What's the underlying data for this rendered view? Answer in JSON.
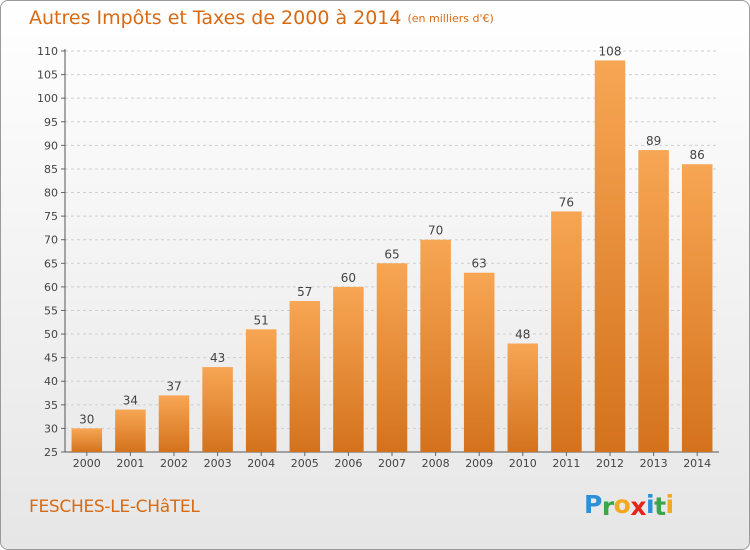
{
  "title": "Autres Impôts et Taxes de 2000 à 2014",
  "unit": "(en milliers d'€)",
  "commune": "FESCHES-LE-CHâTEL",
  "logo": {
    "letters": [
      "P",
      "r",
      "o",
      "x",
      "i",
      "t",
      "i"
    ],
    "colors": [
      "#2d8fd5",
      "#3aa64a",
      "#f2a81f",
      "#e2261c",
      "#2d8fd5",
      "#3aa64a",
      "#f2a81f"
    ]
  },
  "colors": {
    "accent": "#d86a14",
    "bar_top": "#f7a654",
    "bar_bottom": "#d4721c"
  },
  "chart_data": {
    "type": "bar",
    "categories": [
      "2000",
      "2001",
      "2002",
      "2003",
      "2004",
      "2005",
      "2006",
      "2007",
      "2008",
      "2009",
      "2010",
      "2011",
      "2012",
      "2013",
      "2014"
    ],
    "values": [
      30,
      34,
      37,
      43,
      51,
      57,
      60,
      65,
      70,
      63,
      48,
      76,
      108,
      89,
      86
    ],
    "data_labels": [
      "30",
      "34",
      "37",
      "43",
      "51",
      "57",
      "60",
      "65",
      "70",
      "63",
      "48",
      "76",
      "108",
      "89",
      "86"
    ],
    "ylim": [
      25,
      110
    ],
    "yticks": [
      "25",
      "30",
      "35",
      "40",
      "45",
      "50",
      "55",
      "60",
      "65",
      "70",
      "75",
      "80",
      "85",
      "90",
      "95",
      "100",
      "105",
      "110"
    ],
    "grid": true,
    "legend": "none"
  }
}
